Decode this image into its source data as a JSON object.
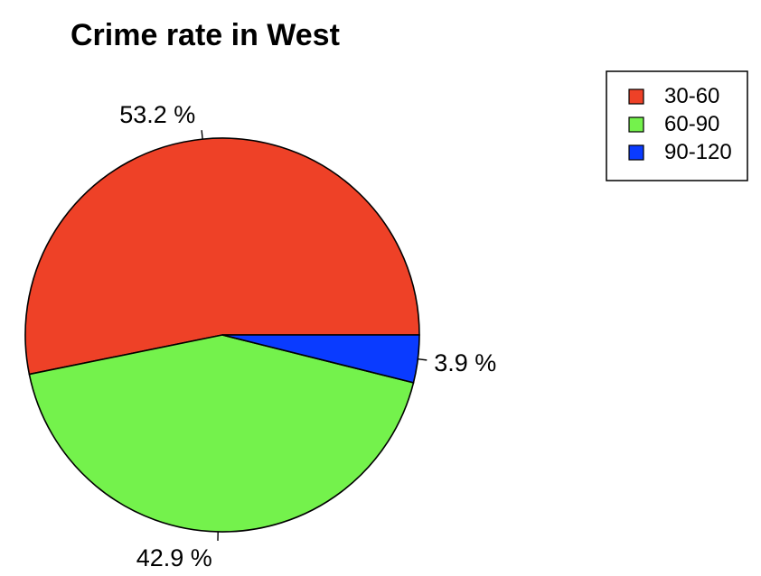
{
  "chart_data": {
    "type": "pie",
    "title": "Crime rate in West",
    "categories": [
      "30-60",
      "60-90",
      "90-120"
    ],
    "values": [
      53.2,
      42.9,
      3.9
    ],
    "slice_labels": [
      "53.2 %",
      "42.9 %",
      "3.9 %"
    ],
    "colors": [
      "#EE4127",
      "#74F24C",
      "#0A3BFF"
    ],
    "start": "right, counter-clockwise",
    "legend_position": "top-right"
  }
}
